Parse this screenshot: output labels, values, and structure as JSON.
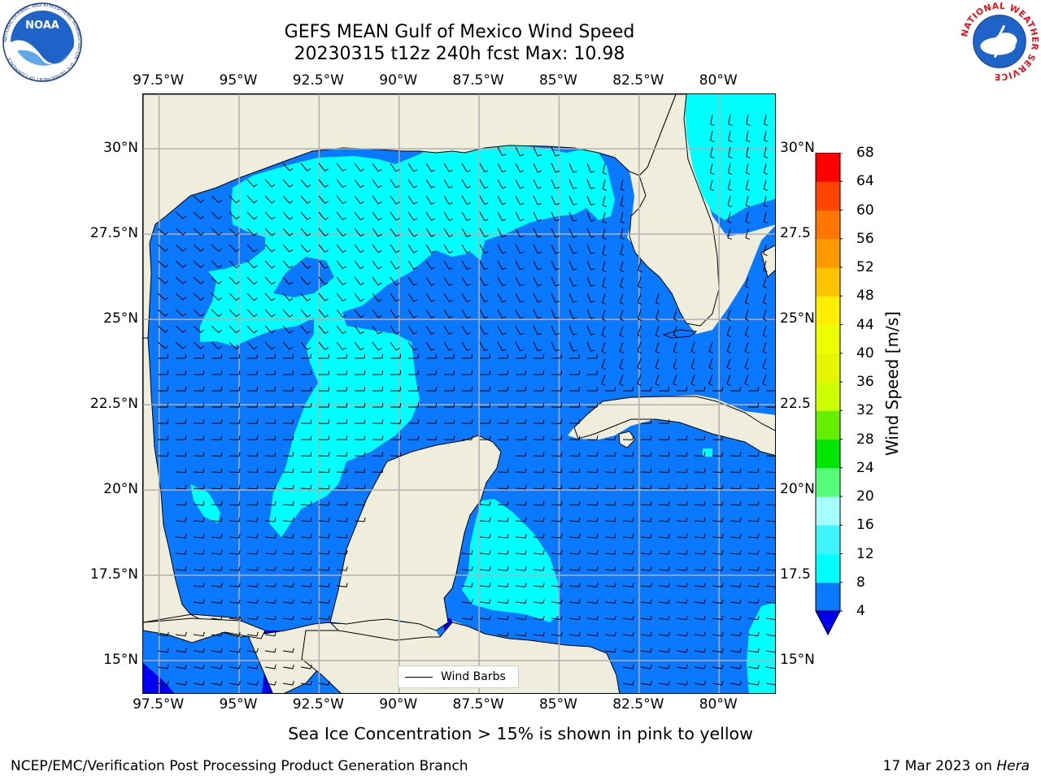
{
  "header": {
    "title_line1": "GEFS MEAN Gulf of Mexico Wind Speed",
    "title_line2": "20230315 t12z 240h fcst   Max: 10.98"
  },
  "logos": {
    "left": {
      "name": "NOAA",
      "text": "NOAA",
      "ring_text": "NATIONAL OCEANIC AND ATMOSPHERIC ADMINISTRATION · U.S. DEPARTMENT OF COMMERCE"
    },
    "right": {
      "name": "National Weather Service",
      "ring_text": "NATIONAL WEATHER SERVICE"
    }
  },
  "map": {
    "lon_labels": [
      "97.5°W",
      "95°W",
      "92.5°W",
      "90°W",
      "87.5°W",
      "85°W",
      "82.5°W",
      "80°W"
    ],
    "lat_labels": [
      "30°N",
      "27.5°N",
      "25°N",
      "22.5°N",
      "20°N",
      "17.5°N",
      "15°N"
    ],
    "lat_labels_right": [
      "30°N",
      "27.5",
      "25°N",
      "22.5",
      "20°N",
      "17.5",
      "15°N"
    ],
    "lon_values": [
      -97.5,
      -95,
      -92.5,
      -90,
      -87.5,
      -85,
      -82.5,
      -80
    ],
    "lat_values": [
      30,
      27.5,
      25,
      22.5,
      20,
      17.5,
      15
    ],
    "lon_range": [
      -98,
      -78.2
    ],
    "lat_range": [
      14,
      31.6
    ],
    "grid": true,
    "legend": {
      "label": "Wind Barbs"
    },
    "colors": {
      "land": "#efeedc",
      "c4_8": "#0a78ff",
      "c8_12": "#00ffff",
      "below4": "#0000ee",
      "grid": "#b0b0b0"
    }
  },
  "colorbar": {
    "label": "Wind Speed [m/s]",
    "ticks": [
      "68",
      "64",
      "60",
      "56",
      "52",
      "48",
      "44",
      "40",
      "36",
      "32",
      "28",
      "24",
      "20",
      "16",
      "12",
      "8",
      "4"
    ],
    "bins": [
      {
        "from": 4,
        "to": 8,
        "color": "#0a78ff"
      },
      {
        "from": 8,
        "to": 12,
        "color": "#00ffff"
      },
      {
        "from": 12,
        "to": 16,
        "color": "#3ff4ff"
      },
      {
        "from": 16,
        "to": 20,
        "color": "#a6ffff"
      },
      {
        "from": 20,
        "to": 24,
        "color": "#55ff7a"
      },
      {
        "from": 24,
        "to": 28,
        "color": "#00e600"
      },
      {
        "from": 28,
        "to": 32,
        "color": "#66ee00"
      },
      {
        "from": 32,
        "to": 36,
        "color": "#ccff00"
      },
      {
        "from": 36,
        "to": 40,
        "color": "#e6f500"
      },
      {
        "from": 40,
        "to": 44,
        "color": "#eeff00"
      },
      {
        "from": 44,
        "to": 48,
        "color": "#ffee00"
      },
      {
        "from": 48,
        "to": 52,
        "color": "#ffc400"
      },
      {
        "from": 52,
        "to": 56,
        "color": "#ff9900"
      },
      {
        "from": 56,
        "to": 60,
        "color": "#ff7700"
      },
      {
        "from": 60,
        "to": 64,
        "color": "#ff4400"
      },
      {
        "from": 64,
        "to": 68,
        "color": "#ff0000"
      }
    ],
    "under_color": "#0000ee"
  },
  "footer": {
    "note": "Sea Ice Concentration > 15% is shown in pink to yellow",
    "credit_left": "NCEP/EMC/Verification Post Processing Product Generation Branch",
    "credit_date": "17 Mar 2023 on ",
    "credit_machine": "Hera"
  }
}
